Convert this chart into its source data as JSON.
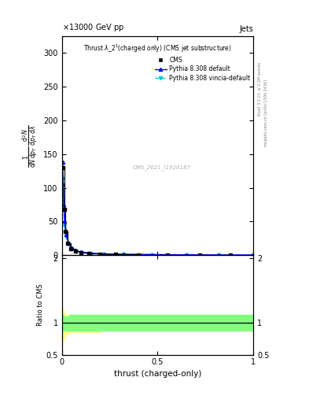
{
  "title_top_left": "13000 GeV pp",
  "title_top_right": "Jets",
  "plot_title_line1": "Thrust λ_2¹ (charged only) (CMS jet substructure)",
  "xlabel": "thrust (charged-only)",
  "watermark": "CMS_2021_I1920187",
  "right_label_top": "Rivet 3.1.10, ≥ 2.2M events",
  "right_label_bot": "mcplots.cern.ch [arXiv:1306.3436]",
  "ylim_main": [
    0,
    325
  ],
  "ylim_ratio": [
    0.5,
    2.05
  ],
  "xlim": [
    0.0,
    1.0
  ],
  "background_color": "#ffffff",
  "cms_color": "#000000",
  "pythia_default_color": "#0000ff",
  "pythia_vincia_color": "#00cccc",
  "ratio_green_color": "#80ff80",
  "ratio_yellow_color": "#ffff80",
  "cms_x": [
    0.005,
    0.012,
    0.02,
    0.032,
    0.048,
    0.07,
    0.1,
    0.14,
    0.2,
    0.28,
    0.4,
    0.55,
    0.72,
    0.88
  ],
  "cms_y": [
    130,
    68,
    35,
    18,
    10,
    6,
    3.5,
    2.2,
    1.5,
    1.0,
    0.7,
    0.5,
    0.25,
    0.1
  ],
  "py_x": [
    0.004,
    0.007,
    0.011,
    0.016,
    0.024,
    0.035,
    0.05,
    0.07,
    0.1,
    0.15,
    0.22,
    0.32,
    0.47,
    0.65,
    0.82,
    1.0
  ],
  "py_y": [
    138,
    105,
    75,
    50,
    30,
    18,
    11,
    7,
    4.5,
    2.8,
    1.8,
    1.2,
    0.7,
    0.35,
    0.15,
    0.05
  ],
  "pv_x": [
    0.004,
    0.007,
    0.011,
    0.016,
    0.024,
    0.035,
    0.05,
    0.07,
    0.1,
    0.15,
    0.22,
    0.32,
    0.47,
    0.65,
    0.82,
    1.0
  ],
  "pv_y": [
    113,
    95,
    68,
    44,
    27,
    16,
    10,
    6.5,
    4.2,
    2.6,
    1.7,
    1.1,
    0.65,
    0.32,
    0.13,
    0.04
  ],
  "ratio_x": [
    0.0,
    0.005,
    0.01,
    0.02,
    0.04,
    0.08,
    0.12,
    0.2,
    0.3,
    0.5,
    0.7,
    1.0
  ],
  "ratio_y_green_up": [
    1.1,
    1.12,
    1.1,
    1.1,
    1.12,
    1.12,
    1.12,
    1.12,
    1.12,
    1.12,
    1.12,
    1.12
  ],
  "ratio_y_green_lo": [
    0.92,
    0.88,
    0.88,
    0.88,
    0.88,
    0.88,
    0.88,
    0.88,
    0.88,
    0.88,
    0.88,
    0.88
  ],
  "ratio_y_yellow_up": [
    1.15,
    1.2,
    1.15,
    1.12,
    1.12,
    1.12,
    1.12,
    1.12,
    1.12,
    1.12,
    1.12,
    1.12
  ],
  "ratio_y_yellow_lo": [
    0.78,
    0.72,
    0.78,
    0.82,
    0.85,
    0.85,
    0.85,
    0.88,
    0.88,
    0.88,
    0.88,
    0.88
  ]
}
